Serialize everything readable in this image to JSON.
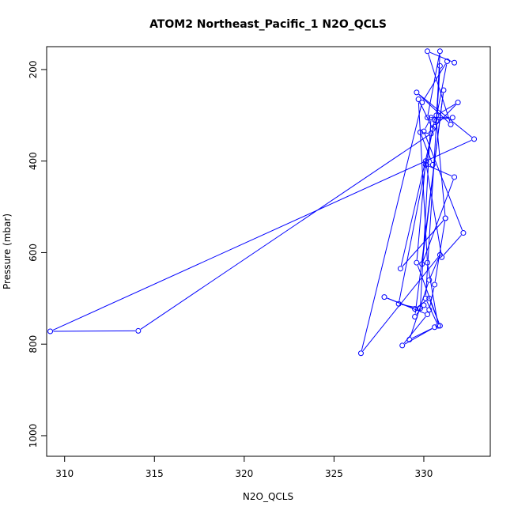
{
  "chart_data": {
    "type": "line",
    "title": "ATOM2 Northeast_Pacific_1 N2O_QCLS",
    "xlabel": "N2O_QCLS",
    "ylabel": "Pressure (mbar)",
    "xlim": [
      309.0,
      333.7
    ],
    "ylim": [
      1045,
      150
    ],
    "y_reversed": true,
    "x_ticks": [
      "310",
      "315",
      "320",
      "325",
      "330"
    ],
    "y_ticks": [
      "200",
      "400",
      "600",
      "800",
      "1000"
    ],
    "marker": "open-circle",
    "line_color": "#0000ff",
    "grid": false,
    "legend": "none",
    "series": [
      {
        "x": [
          331.7,
          330.2,
          331.5,
          329.6,
          332.8,
          309.2,
          314.1,
          330.4,
          329.8,
          330.5,
          330.1,
          331.7,
          329.9,
          331.1,
          329.5,
          330.0,
          330.3,
          330.6,
          331.2,
          328.7,
          330.5,
          329.7,
          330.2,
          330.8,
          330.1,
          330.9,
          330.7,
          331.9,
          330.6,
          331.3,
          329.9,
          326.5,
          330.9,
          330.3,
          329.2,
          330.6,
          328.8,
          330.2,
          327.8,
          329.5,
          330.3,
          330.9,
          329.6,
          330.1,
          331.0,
          332.2,
          330.0,
          330.4,
          329.8,
          328.6,
          330.6,
          331.6,
          330.2,
          330.9,
          330.7,
          331.2
        ],
        "y": [
          185,
          160,
          320,
          250,
          352,
          772,
          771,
          340,
          337,
          408,
          408,
          435,
          625,
          245,
          740,
          715,
          725,
          670,
          525,
          635,
          330,
          265,
          622,
          760,
          700,
          192,
          300,
          272,
          325,
          182,
          272,
          820,
          605,
          660,
          790,
          763,
          803,
          735,
          697,
          723,
          700,
          760,
          622,
          400,
          610,
          557,
          335,
          305,
          722,
          712,
          310,
          305,
          305,
          160,
          312,
          525
        ]
      }
    ]
  }
}
